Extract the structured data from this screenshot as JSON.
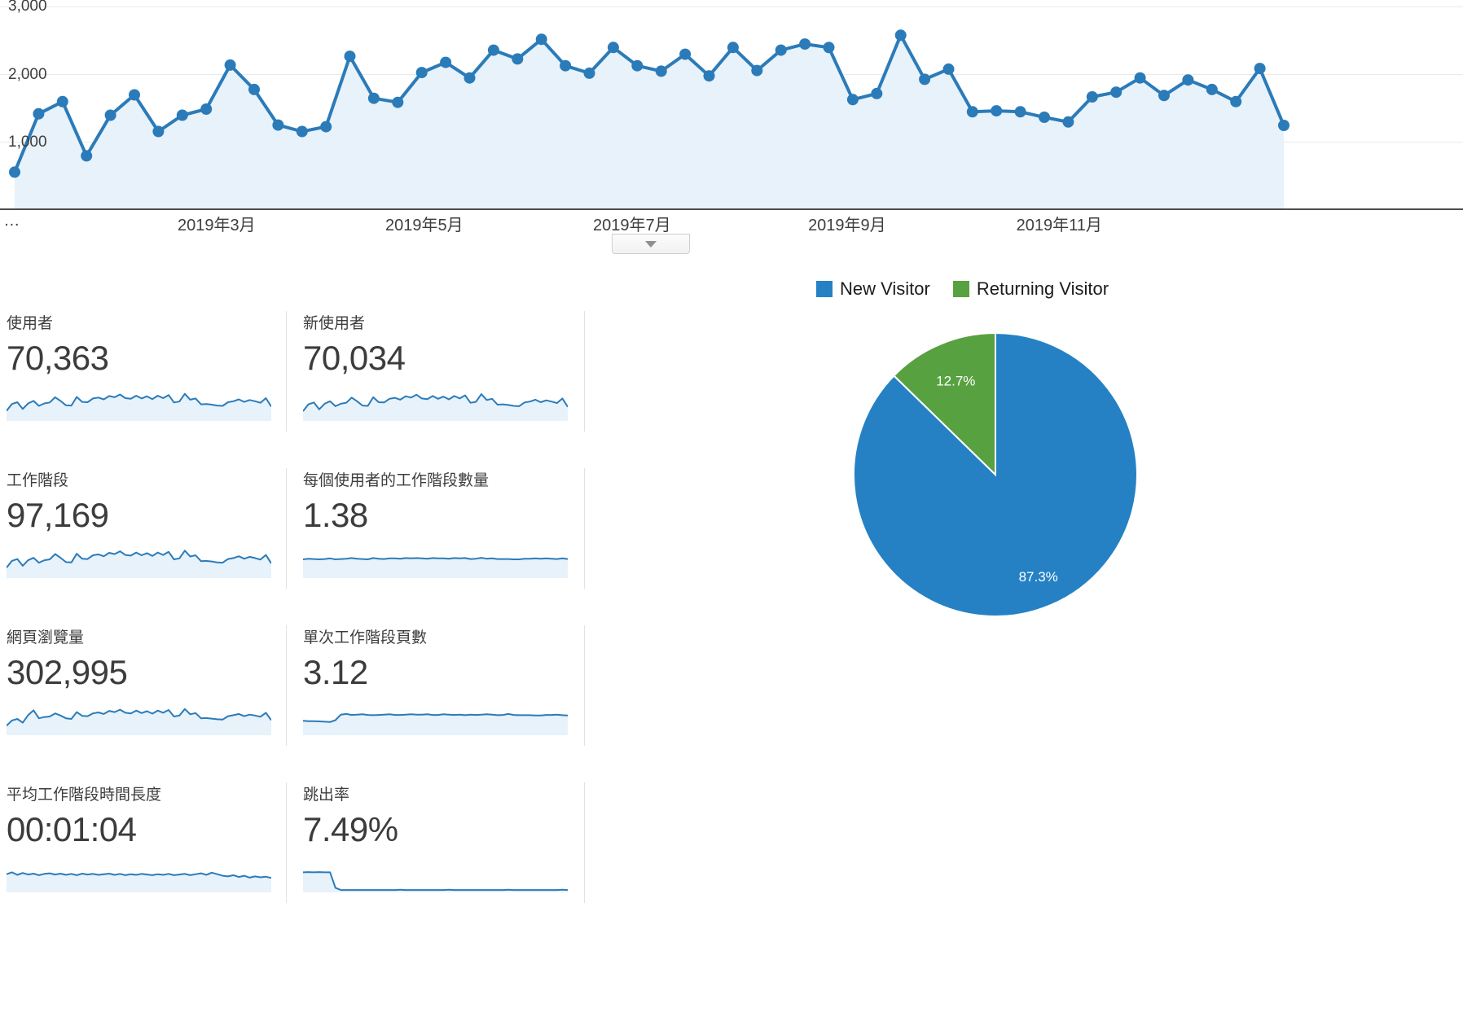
{
  "chart_data": {
    "timeline": {
      "type": "area",
      "title": "",
      "xlabel": "",
      "ylabel": "",
      "ylim": [
        0,
        3000
      ],
      "ylim_render": 3100,
      "grid": true,
      "gridlines": [
        {
          "value": 1000,
          "label": "1,000"
        },
        {
          "value": 2000,
          "label": "2,000"
        },
        {
          "value": 3000,
          "label": "3,000"
        }
      ],
      "x_ticks": [
        {
          "label": "…",
          "xf": 0.008
        },
        {
          "label": "2019年3月",
          "xf": 0.148
        },
        {
          "label": "2019年5月",
          "xf": 0.29
        },
        {
          "label": "2019年7月",
          "xf": 0.432
        },
        {
          "label": "2019年9月",
          "xf": 0.579
        },
        {
          "label": "2019年11月",
          "xf": 0.724
        }
      ],
      "values": [
        560,
        1420,
        1600,
        800,
        1400,
        1700,
        1160,
        1400,
        1490,
        2140,
        1780,
        1255,
        1160,
        1230,
        2270,
        1650,
        1590,
        2030,
        2180,
        1950,
        2360,
        2230,
        2520,
        2130,
        2020,
        2400,
        2130,
        2050,
        2300,
        1980,
        2400,
        2060,
        2360,
        2450,
        2400,
        1630,
        1720,
        2580,
        1930,
        2080,
        1450,
        1465,
        1450,
        1370,
        1300,
        1670,
        1740,
        1950,
        1690,
        1920,
        1780,
        1600,
        2090,
        1250
      ]
    },
    "pie": {
      "type": "pie",
      "legend_position": "top",
      "slices": [
        {
          "label": "New Visitor",
          "value": 87.3,
          "pct_label": "87.3%",
          "color": "#2581c4",
          "label_r": 0.78
        },
        {
          "label": "Returning Visitor",
          "value": 12.7,
          "pct_label": "12.7%",
          "color": "#58a140",
          "label_r": 0.72
        }
      ]
    },
    "colors": {
      "line": "#2b7bb9",
      "area": "#e7f2fa"
    }
  },
  "controls": {
    "collapse_icon": "chevron-down"
  },
  "cards": [
    {
      "title": "使用者",
      "value": "70,363",
      "spark": [
        0.3,
        0.52,
        0.58,
        0.36,
        0.54,
        0.62,
        0.46,
        0.54,
        0.57,
        0.74,
        0.62,
        0.48,
        0.47,
        0.75,
        0.59,
        0.58,
        0.7,
        0.73,
        0.67,
        0.78,
        0.74,
        0.83,
        0.71,
        0.69,
        0.79,
        0.7,
        0.77,
        0.68,
        0.79,
        0.71,
        0.81,
        0.57,
        0.6,
        0.85,
        0.66,
        0.7,
        0.51,
        0.52,
        0.5,
        0.47,
        0.46,
        0.58,
        0.61,
        0.67,
        0.59,
        0.65,
        0.61,
        0.56,
        0.71,
        0.44
      ]
    },
    {
      "title": "新使用者",
      "value": "70,034",
      "spark": [
        0.29,
        0.51,
        0.57,
        0.35,
        0.53,
        0.61,
        0.45,
        0.53,
        0.56,
        0.73,
        0.61,
        0.47,
        0.46,
        0.74,
        0.58,
        0.57,
        0.69,
        0.72,
        0.66,
        0.77,
        0.73,
        0.82,
        0.7,
        0.68,
        0.78,
        0.69,
        0.76,
        0.67,
        0.78,
        0.7,
        0.8,
        0.56,
        0.59,
        0.84,
        0.65,
        0.69,
        0.5,
        0.51,
        0.49,
        0.46,
        0.45,
        0.57,
        0.6,
        0.66,
        0.58,
        0.64,
        0.6,
        0.55,
        0.7,
        0.43
      ]
    },
    {
      "title": "工作階段",
      "value": "97,169",
      "spark": [
        0.31,
        0.53,
        0.59,
        0.37,
        0.55,
        0.63,
        0.47,
        0.55,
        0.58,
        0.75,
        0.63,
        0.49,
        0.48,
        0.76,
        0.6,
        0.59,
        0.71,
        0.74,
        0.68,
        0.79,
        0.75,
        0.84,
        0.72,
        0.7,
        0.8,
        0.71,
        0.78,
        0.69,
        0.8,
        0.72,
        0.82,
        0.58,
        0.61,
        0.86,
        0.67,
        0.71,
        0.52,
        0.53,
        0.51,
        0.48,
        0.47,
        0.59,
        0.62,
        0.68,
        0.6,
        0.66,
        0.62,
        0.57,
        0.72,
        0.45
      ]
    },
    {
      "title": "每個使用者的工作階段數量",
      "value": "1.38",
      "spark": [
        0.58,
        0.6,
        0.59,
        0.58,
        0.59,
        0.61,
        0.58,
        0.59,
        0.6,
        0.62,
        0.6,
        0.59,
        0.58,
        0.62,
        0.6,
        0.59,
        0.61,
        0.61,
        0.6,
        0.62,
        0.61,
        0.62,
        0.61,
        0.6,
        0.62,
        0.61,
        0.61,
        0.6,
        0.62,
        0.61,
        0.62,
        0.59,
        0.6,
        0.63,
        0.6,
        0.61,
        0.59,
        0.59,
        0.59,
        0.58,
        0.58,
        0.6,
        0.6,
        0.61,
        0.6,
        0.61,
        0.6,
        0.59,
        0.61,
        0.59
      ]
    },
    {
      "title": "網頁瀏覽量",
      "value": "302,995",
      "spark": [
        0.28,
        0.45,
        0.5,
        0.38,
        0.62,
        0.78,
        0.52,
        0.56,
        0.58,
        0.68,
        0.61,
        0.52,
        0.5,
        0.72,
        0.6,
        0.59,
        0.68,
        0.71,
        0.66,
        0.76,
        0.72,
        0.8,
        0.7,
        0.68,
        0.77,
        0.69,
        0.75,
        0.67,
        0.77,
        0.7,
        0.79,
        0.58,
        0.61,
        0.82,
        0.65,
        0.69,
        0.52,
        0.53,
        0.51,
        0.49,
        0.48,
        0.59,
        0.62,
        0.66,
        0.59,
        0.64,
        0.61,
        0.57,
        0.7,
        0.46
      ]
    },
    {
      "title": "單次工作階段頁數",
      "value": "3.12",
      "spark": [
        0.44,
        0.43,
        0.43,
        0.42,
        0.41,
        0.4,
        0.46,
        0.64,
        0.66,
        0.63,
        0.64,
        0.65,
        0.63,
        0.62,
        0.63,
        0.64,
        0.65,
        0.63,
        0.63,
        0.64,
        0.65,
        0.64,
        0.64,
        0.65,
        0.63,
        0.63,
        0.65,
        0.64,
        0.63,
        0.64,
        0.62,
        0.64,
        0.63,
        0.64,
        0.65,
        0.64,
        0.62,
        0.63,
        0.66,
        0.63,
        0.62,
        0.62,
        0.62,
        0.61,
        0.61,
        0.63,
        0.63,
        0.64,
        0.62,
        0.61
      ]
    },
    {
      "title": "平均工作階段時間長度",
      "value": "00:01:04",
      "spark": [
        0.56,
        0.62,
        0.54,
        0.6,
        0.55,
        0.58,
        0.53,
        0.57,
        0.59,
        0.55,
        0.58,
        0.54,
        0.57,
        0.53,
        0.58,
        0.55,
        0.57,
        0.54,
        0.56,
        0.58,
        0.54,
        0.57,
        0.53,
        0.56,
        0.54,
        0.57,
        0.55,
        0.53,
        0.56,
        0.54,
        0.57,
        0.53,
        0.55,
        0.57,
        0.53,
        0.56,
        0.59,
        0.54,
        0.61,
        0.56,
        0.51,
        0.49,
        0.53,
        0.47,
        0.51,
        0.45,
        0.49,
        0.46,
        0.48,
        0.44
      ]
    },
    {
      "title": "跳出率",
      "value": "7.49%",
      "spark": [
        0.62,
        0.63,
        0.62,
        0.63,
        0.62,
        0.62,
        0.12,
        0.05,
        0.05,
        0.05,
        0.05,
        0.05,
        0.05,
        0.05,
        0.05,
        0.05,
        0.05,
        0.05,
        0.06,
        0.05,
        0.05,
        0.05,
        0.05,
        0.05,
        0.05,
        0.05,
        0.05,
        0.06,
        0.05,
        0.05,
        0.05,
        0.05,
        0.05,
        0.05,
        0.05,
        0.05,
        0.05,
        0.05,
        0.06,
        0.05,
        0.05,
        0.05,
        0.05,
        0.05,
        0.05,
        0.05,
        0.05,
        0.05,
        0.06,
        0.05
      ]
    }
  ]
}
